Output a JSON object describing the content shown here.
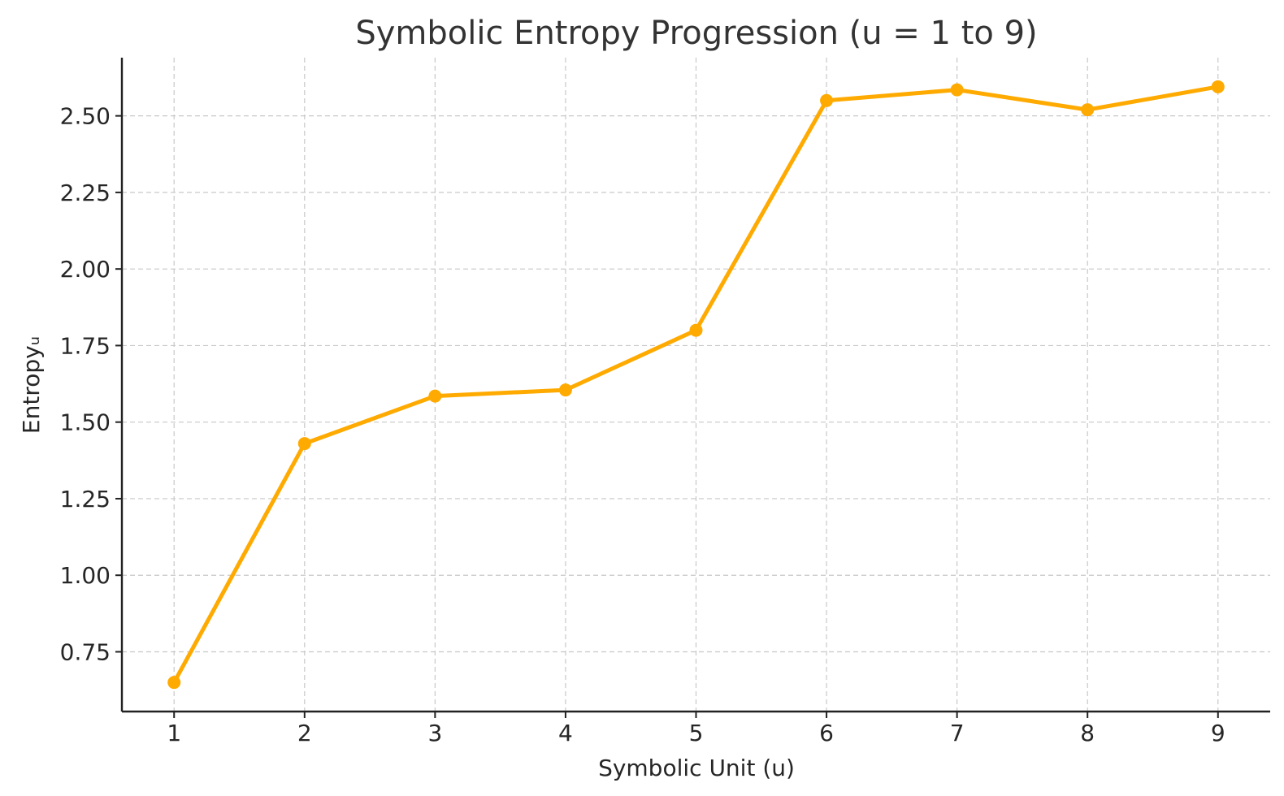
{
  "chart_data": {
    "type": "line",
    "title": "Symbolic Entropy Progression (u = 1 to 9)",
    "xlabel": "Symbolic Unit (u)",
    "ylabel": "Entropyᵤ",
    "x": [
      1,
      2,
      3,
      4,
      5,
      6,
      7,
      8,
      9
    ],
    "series": [
      {
        "values": [
          0.65,
          1.43,
          1.585,
          1.605,
          1.8,
          2.55,
          2.585,
          2.52,
          2.595
        ],
        "color": "#FFAA00"
      }
    ],
    "xticks": [
      "1",
      "2",
      "3",
      "4",
      "5",
      "6",
      "7",
      "8",
      "9"
    ],
    "yticks": [
      "0.75",
      "1.00",
      "1.25",
      "1.50",
      "1.75",
      "2.00",
      "2.25",
      "2.50"
    ],
    "xlim": [
      0.6,
      9.4
    ],
    "ylim": [
      0.555,
      2.69
    ],
    "grid": true,
    "marker": "circle"
  }
}
